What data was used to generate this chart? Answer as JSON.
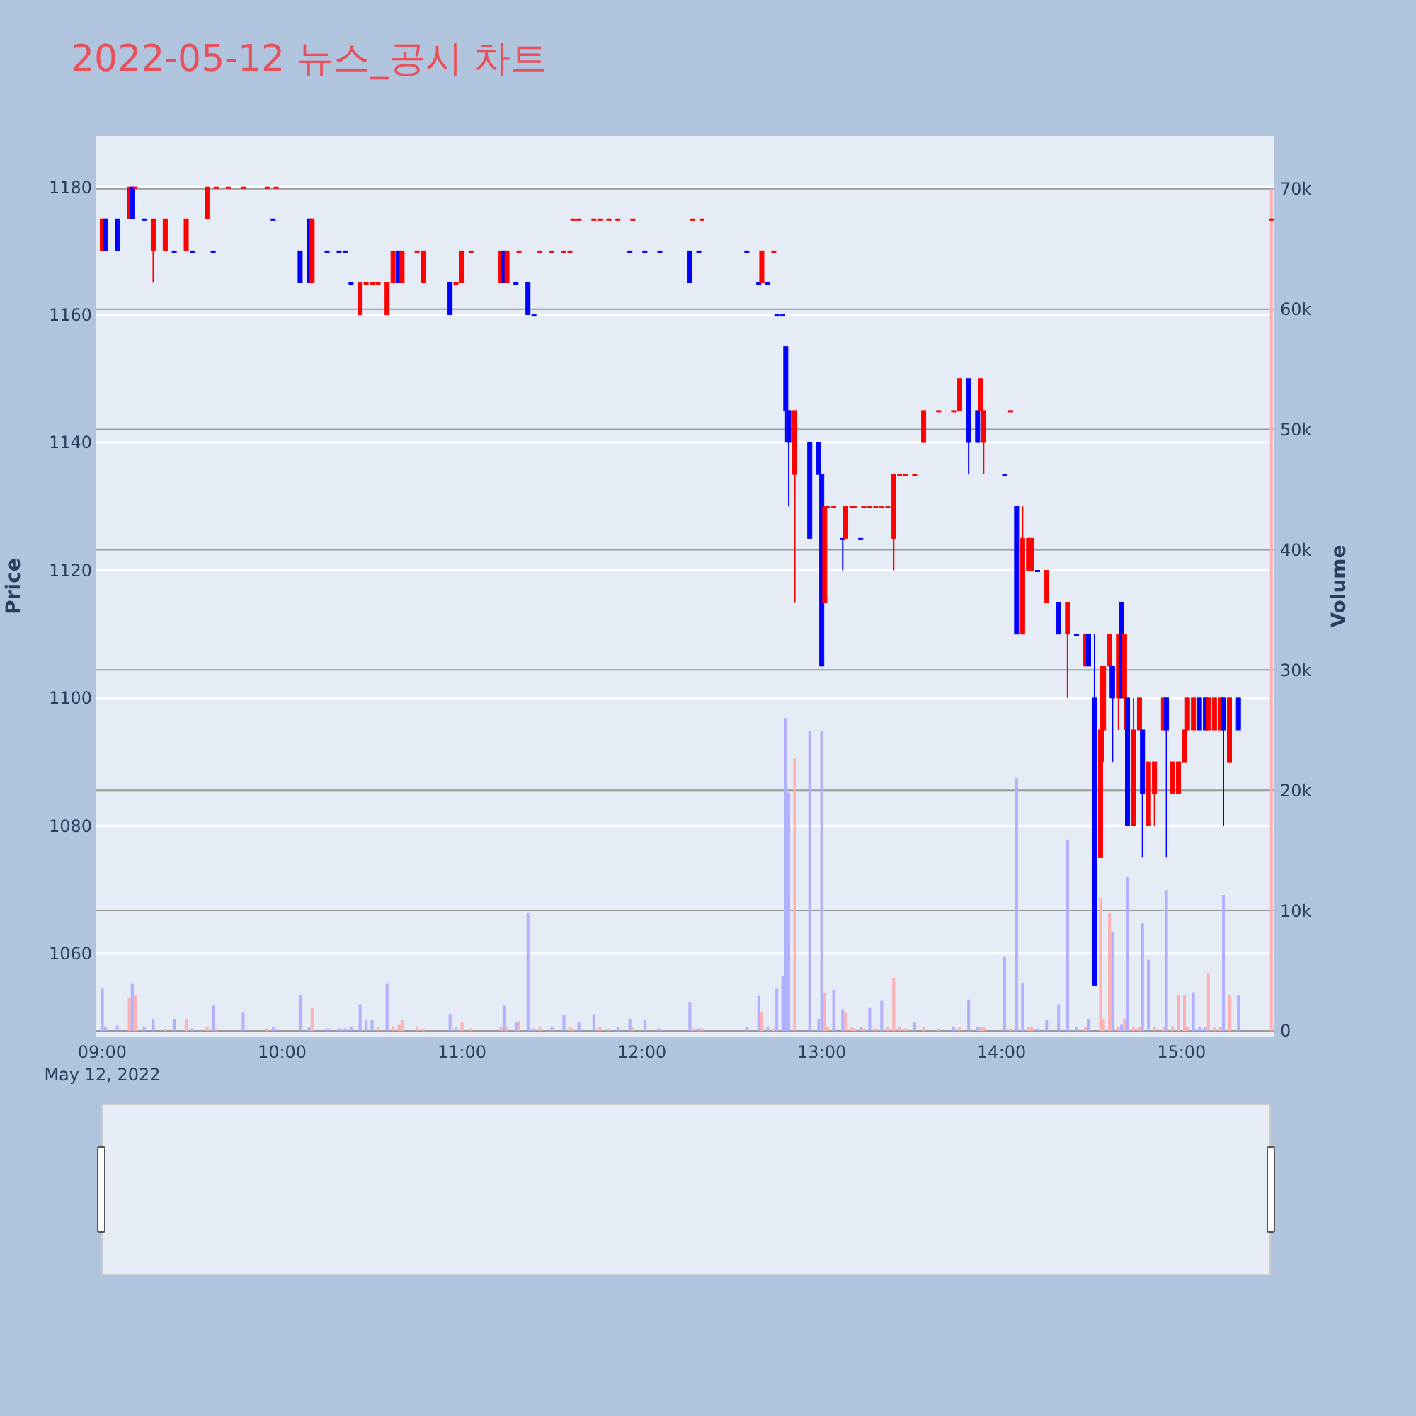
{
  "chart_data": {
    "type": "candlestick",
    "title": "2022-05-12 뉴스_공시 차트",
    "ylabel": "Price",
    "y2label": "Volume",
    "grid": "y",
    "xlim": [
      "2022-05-12T08:58",
      "2022-05-12T15:31"
    ],
    "xticks": [
      {
        "value": "2022-05-12T09:00",
        "label": "09:00\nMay 12, 2022"
      },
      {
        "value": "2022-05-12T10:00",
        "label": "10:00"
      },
      {
        "value": "2022-05-12T11:00",
        "label": "11:00"
      },
      {
        "value": "2022-05-12T12:00",
        "label": "12:00"
      },
      {
        "value": "2022-05-12T13:00",
        "label": "13:00"
      },
      {
        "value": "2022-05-12T14:00",
        "label": "14:00"
      },
      {
        "value": "2022-05-12T15:00",
        "label": "15:00"
      }
    ],
    "ylim": [
      1047,
      1188
    ],
    "yticks": [
      1060,
      1080,
      1100,
      1120,
      1140,
      1160,
      1180
    ],
    "y2lim": [
      -470,
      74400
    ],
    "y2ticks": [
      0,
      {
        "value": 10000,
        "label": "10k"
      },
      {
        "value": 20000,
        "label": "20k"
      },
      {
        "value": 30000,
        "label": "30k"
      },
      {
        "value": 40000,
        "label": "40k"
      },
      {
        "value": 50000,
        "label": "50k"
      },
      {
        "value": 60000,
        "label": "60k"
      },
      {
        "value": 70000,
        "label": "70k"
      }
    ],
    "x": [
      "2022-05-12T09:00",
      "2022-05-12T09:01",
      "2022-05-12T09:05",
      "2022-05-12T09:09",
      "2022-05-12T09:10",
      "2022-05-12T09:11",
      "2022-05-12T09:14",
      "2022-05-12T09:17",
      "2022-05-12T09:21",
      "2022-05-12T09:24",
      "2022-05-12T09:28",
      "2022-05-12T09:30",
      "2022-05-12T09:35",
      "2022-05-12T09:37",
      "2022-05-12T09:38",
      "2022-05-12T09:42",
      "2022-05-12T09:47",
      "2022-05-12T09:55",
      "2022-05-12T09:57",
      "2022-05-12T09:58",
      "2022-05-12T10:06",
      "2022-05-12T10:09",
      "2022-05-12T10:10",
      "2022-05-12T10:15",
      "2022-05-12T10:19",
      "2022-05-12T10:21",
      "2022-05-12T10:23",
      "2022-05-12T10:26",
      "2022-05-12T10:28",
      "2022-05-12T10:30",
      "2022-05-12T10:32",
      "2022-05-12T10:35",
      "2022-05-12T10:37",
      "2022-05-12T10:39",
      "2022-05-12T10:40",
      "2022-05-12T10:45",
      "2022-05-12T10:47",
      "2022-05-12T10:56",
      "2022-05-12T10:58",
      "2022-05-12T11:00",
      "2022-05-12T11:03",
      "2022-05-12T11:13",
      "2022-05-12T11:14",
      "2022-05-12T11:15",
      "2022-05-12T11:18",
      "2022-05-12T11:19",
      "2022-05-12T11:22",
      "2022-05-12T11:24",
      "2022-05-12T11:26",
      "2022-05-12T11:30",
      "2022-05-12T11:34",
      "2022-05-12T11:36",
      "2022-05-12T11:37",
      "2022-05-12T11:39",
      "2022-05-12T11:44",
      "2022-05-12T11:46",
      "2022-05-12T11:49",
      "2022-05-12T11:52",
      "2022-05-12T11:56",
      "2022-05-12T11:57",
      "2022-05-12T12:01",
      "2022-05-12T12:06",
      "2022-05-12T12:16",
      "2022-05-12T12:17",
      "2022-05-12T12:19",
      "2022-05-12T12:20",
      "2022-05-12T12:35",
      "2022-05-12T12:39",
      "2022-05-12T12:40",
      "2022-05-12T12:42",
      "2022-05-12T12:44",
      "2022-05-12T12:45",
      "2022-05-12T12:47",
      "2022-05-12T12:48",
      "2022-05-12T12:49",
      "2022-05-12T12:51",
      "2022-05-12T12:56",
      "2022-05-12T12:59",
      "2022-05-12T13:00",
      "2022-05-12T13:01",
      "2022-05-12T13:02",
      "2022-05-12T13:04",
      "2022-05-12T13:07",
      "2022-05-12T13:08",
      "2022-05-12T13:10",
      "2022-05-12T13:11",
      "2022-05-12T13:13",
      "2022-05-12T13:14",
      "2022-05-12T13:16",
      "2022-05-12T13:18",
      "2022-05-12T13:20",
      "2022-05-12T13:22",
      "2022-05-12T13:24",
      "2022-05-12T13:26",
      "2022-05-12T13:28",
      "2022-05-12T13:31",
      "2022-05-12T13:34",
      "2022-05-12T13:39",
      "2022-05-12T13:44",
      "2022-05-12T13:46",
      "2022-05-12T13:49",
      "2022-05-12T13:52",
      "2022-05-12T13:53",
      "2022-05-12T13:54",
      "2022-05-12T14:01",
      "2022-05-12T14:03",
      "2022-05-12T14:05",
      "2022-05-12T14:07",
      "2022-05-12T14:09",
      "2022-05-12T14:10",
      "2022-05-12T14:12",
      "2022-05-12T14:15",
      "2022-05-12T14:19",
      "2022-05-12T14:22",
      "2022-05-12T14:25",
      "2022-05-12T14:28",
      "2022-05-12T14:29",
      "2022-05-12T14:31",
      "2022-05-12T14:33",
      "2022-05-12T14:34",
      "2022-05-12T14:36",
      "2022-05-12T14:37",
      "2022-05-12T14:39",
      "2022-05-12T14:40",
      "2022-05-12T14:41",
      "2022-05-12T14:42",
      "2022-05-12T14:44",
      "2022-05-12T14:46",
      "2022-05-12T14:47",
      "2022-05-12T14:49",
      "2022-05-12T14:51",
      "2022-05-12T14:54",
      "2022-05-12T14:55",
      "2022-05-12T14:57",
      "2022-05-12T14:59",
      "2022-05-12T15:01",
      "2022-05-12T15:02",
      "2022-05-12T15:04",
      "2022-05-12T15:06",
      "2022-05-12T15:08",
      "2022-05-12T15:09",
      "2022-05-12T15:11",
      "2022-05-12T15:13",
      "2022-05-12T15:14",
      "2022-05-12T15:16",
      "2022-05-12T15:19",
      "2022-05-12T15:30"
    ],
    "ohlc": [
      [
        1170,
        1175,
        1170,
        1175
      ],
      [
        1175,
        1175,
        1170,
        1170
      ],
      [
        1175,
        1175,
        1170,
        1170
      ],
      [
        1175,
        1180,
        1175,
        1180
      ],
      [
        1180,
        1180,
        1175,
        1175
      ],
      [
        1180,
        1180,
        1180,
        1180
      ],
      [
        1175,
        1175,
        1175,
        1175
      ],
      [
        1170,
        1175,
        1165,
        1175
      ],
      [
        1170,
        1175,
        1170,
        1175
      ],
      [
        1170,
        1170,
        1170,
        1170
      ],
      [
        1170,
        1175,
        1170,
        1175
      ],
      [
        1170,
        1170,
        1170,
        1170
      ],
      [
        1175,
        1180,
        1175,
        1180
      ],
      [
        1170,
        1170,
        1170,
        1170
      ],
      [
        1180,
        1180,
        1180,
        1180
      ],
      [
        1180,
        1180,
        1180,
        1180
      ],
      [
        1180,
        1180,
        1180,
        1180
      ],
      [
        1180,
        1180,
        1180,
        1180
      ],
      [
        1175,
        1175,
        1175,
        1175
      ],
      [
        1180,
        1180,
        1180,
        1180
      ],
      [
        1170,
        1170,
        1165,
        1165
      ],
      [
        1175,
        1175,
        1165,
        1165
      ],
      [
        1165,
        1175,
        1165,
        1175
      ],
      [
        1170,
        1170,
        1170,
        1170
      ],
      [
        1170,
        1170,
        1170,
        1170
      ],
      [
        1170,
        1170,
        1170,
        1170
      ],
      [
        1165,
        1165,
        1165,
        1165
      ],
      [
        1160,
        1165,
        1160,
        1165
      ],
      [
        1165,
        1165,
        1165,
        1165
      ],
      [
        1165,
        1165,
        1165,
        1165
      ],
      [
        1165,
        1165,
        1165,
        1165
      ],
      [
        1160,
        1165,
        1160,
        1165
      ],
      [
        1165,
        1170,
        1165,
        1170
      ],
      [
        1170,
        1170,
        1165,
        1165
      ],
      [
        1165,
        1170,
        1165,
        1170
      ],
      [
        1170,
        1170,
        1170,
        1170
      ],
      [
        1165,
        1170,
        1165,
        1170
      ],
      [
        1165,
        1165,
        1160,
        1160
      ],
      [
        1165,
        1165,
        1165,
        1165
      ],
      [
        1165,
        1170,
        1165,
        1170
      ],
      [
        1170,
        1170,
        1170,
        1170
      ],
      [
        1165,
        1170,
        1165,
        1170
      ],
      [
        1170,
        1170,
        1165,
        1165
      ],
      [
        1165,
        1170,
        1165,
        1170
      ],
      [
        1165,
        1165,
        1165,
        1165
      ],
      [
        1170,
        1170,
        1170,
        1170
      ],
      [
        1165,
        1165,
        1160,
        1160
      ],
      [
        1160,
        1160,
        1160,
        1160
      ],
      [
        1170,
        1170,
        1170,
        1170
      ],
      [
        1170,
        1170,
        1170,
        1170
      ],
      [
        1170,
        1170,
        1170,
        1170
      ],
      [
        1170,
        1170,
        1170,
        1170
      ],
      [
        1175,
        1175,
        1175,
        1175
      ],
      [
        1175,
        1175,
        1175,
        1175
      ],
      [
        1175,
        1175,
        1175,
        1175
      ],
      [
        1175,
        1175,
        1175,
        1175
      ],
      [
        1175,
        1175,
        1175,
        1175
      ],
      [
        1175,
        1175,
        1175,
        1175
      ],
      [
        1170,
        1170,
        1170,
        1170
      ],
      [
        1175,
        1175,
        1175,
        1175
      ],
      [
        1170,
        1170,
        1170,
        1170
      ],
      [
        1170,
        1170,
        1170,
        1170
      ],
      [
        1170,
        1170,
        1165,
        1165
      ],
      [
        1175,
        1175,
        1175,
        1175
      ],
      [
        1170,
        1170,
        1170,
        1170
      ],
      [
        1175,
        1175,
        1175,
        1175
      ],
      [
        1170,
        1170,
        1170,
        1170
      ],
      [
        1165,
        1165,
        1165,
        1165
      ],
      [
        1165,
        1170,
        1165,
        1170
      ],
      [
        1165,
        1165,
        1165,
        1165
      ],
      [
        1170,
        1170,
        1170,
        1170
      ],
      [
        1160,
        1160,
        1160,
        1160
      ],
      [
        1160,
        1160,
        1160,
        1160
      ],
      [
        1155,
        1155,
        1140,
        1145
      ],
      [
        1145,
        1145,
        1130,
        1140
      ],
      [
        1135,
        1145,
        1115,
        1145
      ],
      [
        1140,
        1140,
        1125,
        1125
      ],
      [
        1140,
        1140,
        1135,
        1135
      ],
      [
        1135,
        1135,
        1105,
        1105
      ],
      [
        1115,
        1130,
        1115,
        1130
      ],
      [
        1130,
        1130,
        1130,
        1130
      ],
      [
        1130,
        1130,
        1130,
        1130
      ],
      [
        1125,
        1125,
        1120,
        1125
      ],
      [
        1125,
        1130,
        1125,
        1130
      ],
      [
        1130,
        1130,
        1130,
        1130
      ],
      [
        1130,
        1130,
        1130,
        1130
      ],
      [
        1125,
        1125,
        1125,
        1125
      ],
      [
        1130,
        1130,
        1130,
        1130
      ],
      [
        1130,
        1130,
        1130,
        1130
      ],
      [
        1130,
        1130,
        1130,
        1130
      ],
      [
        1130,
        1130,
        1130,
        1130
      ],
      [
        1130,
        1130,
        1130,
        1130
      ],
      [
        1125,
        1135,
        1120,
        1135
      ],
      [
        1135,
        1135,
        1135,
        1135
      ],
      [
        1135,
        1135,
        1135,
        1135
      ],
      [
        1135,
        1135,
        1135,
        1135
      ],
      [
        1140,
        1145,
        1140,
        1145
      ],
      [
        1145,
        1145,
        1145,
        1145
      ],
      [
        1145,
        1145,
        1145,
        1145
      ],
      [
        1145,
        1150,
        1145,
        1150
      ],
      [
        1150,
        1150,
        1135,
        1140
      ],
      [
        1145,
        1145,
        1140,
        1140
      ],
      [
        1145,
        1150,
        1145,
        1150
      ],
      [
        1140,
        1145,
        1135,
        1145
      ],
      [
        1135,
        1135,
        1135,
        1135
      ],
      [
        1145,
        1145,
        1145,
        1145
      ],
      [
        1130,
        1130,
        1110,
        1110
      ],
      [
        1110,
        1130,
        1110,
        1125
      ],
      [
        1120,
        1125,
        1120,
        1125
      ],
      [
        1120,
        1125,
        1120,
        1125
      ],
      [
        1120,
        1120,
        1120,
        1120
      ],
      [
        1115,
        1120,
        1115,
        1120
      ],
      [
        1115,
        1115,
        1110,
        1110
      ],
      [
        1110,
        1115,
        1100,
        1115
      ],
      [
        1110,
        1110,
        1110,
        1110
      ],
      [
        1105,
        1110,
        1105,
        1110
      ],
      [
        1110,
        1110,
        1105,
        1105
      ],
      [
        1100,
        1110,
        1055,
        1055
      ],
      [
        1075,
        1105,
        1075,
        1095
      ],
      [
        1095,
        1105,
        1090,
        1105
      ],
      [
        1105,
        1110,
        1100,
        1110
      ],
      [
        1105,
        1105,
        1090,
        1100
      ],
      [
        1100,
        1110,
        1095,
        1110
      ],
      [
        1115,
        1115,
        1100,
        1100
      ],
      [
        1100,
        1110,
        1095,
        1110
      ],
      [
        1100,
        1100,
        1080,
        1080
      ],
      [
        1080,
        1100,
        1080,
        1095
      ],
      [
        1095,
        1100,
        1095,
        1100
      ],
      [
        1095,
        1095,
        1075,
        1085
      ],
      [
        1080,
        1090,
        1080,
        1090
      ],
      [
        1085,
        1090,
        1080,
        1090
      ],
      [
        1095,
        1100,
        1095,
        1100
      ],
      [
        1100,
        1100,
        1075,
        1095
      ],
      [
        1085,
        1090,
        1085,
        1090
      ],
      [
        1085,
        1090,
        1085,
        1090
      ],
      [
        1090,
        1095,
        1090,
        1095
      ],
      [
        1095,
        1100,
        1095,
        1100
      ],
      [
        1095,
        1100,
        1095,
        1100
      ],
      [
        1100,
        1100,
        1095,
        1095
      ],
      [
        1100,
        1100,
        1095,
        1095
      ],
      [
        1095,
        1100,
        1095,
        1100
      ],
      [
        1095,
        1100,
        1095,
        1100
      ],
      [
        1095,
        1100,
        1095,
        1100
      ],
      [
        1100,
        1100,
        1080,
        1095
      ],
      [
        1090,
        1100,
        1090,
        1100
      ],
      [
        1100,
        1100,
        1095,
        1095
      ],
      [
        1175,
        1175,
        1175,
        1175
      ]
    ],
    "colors": [
      "#ff0000",
      "#0000ff",
      "#0000ff",
      "#ff0000",
      "#0000ff",
      "#ff0000",
      "#0000ff",
      "#ff0000",
      "#ff0000",
      "#0000ff",
      "#ff0000",
      "#0000ff",
      "#ff0000",
      "#0000ff",
      "#ff0000",
      "#ff0000",
      "#ff0000",
      "#ff0000",
      "#0000ff",
      "#ff0000",
      "#0000ff",
      "#0000ff",
      "#ff0000",
      "#0000ff",
      "#0000ff",
      "#0000ff",
      "#0000ff",
      "#ff0000",
      "#ff0000",
      "#ff0000",
      "#ff0000",
      "#ff0000",
      "#ff0000",
      "#0000ff",
      "#ff0000",
      "#ff0000",
      "#ff0000",
      "#0000ff",
      "#ff0000",
      "#ff0000",
      "#ff0000",
      "#ff0000",
      "#0000ff",
      "#ff0000",
      "#0000ff",
      "#ff0000",
      "#0000ff",
      "#0000ff",
      "#ff0000",
      "#ff0000",
      "#ff0000",
      "#ff0000",
      "#ff0000",
      "#ff0000",
      "#ff0000",
      "#ff0000",
      "#ff0000",
      "#ff0000",
      "#0000ff",
      "#ff0000",
      "#0000ff",
      "#0000ff",
      "#0000ff",
      "#ff0000",
      "#0000ff",
      "#ff0000",
      "#0000ff",
      "#0000ff",
      "#ff0000",
      "#0000ff",
      "#ff0000",
      "#0000ff",
      "#0000ff",
      "#0000ff",
      "#0000ff",
      "#ff0000",
      "#0000ff",
      "#0000ff",
      "#0000ff",
      "#ff0000",
      "#ff0000",
      "#ff0000",
      "#0000ff",
      "#ff0000",
      "#ff0000",
      "#ff0000",
      "#0000ff",
      "#ff0000",
      "#ff0000",
      "#ff0000",
      "#ff0000",
      "#ff0000",
      "#ff0000",
      "#ff0000",
      "#ff0000",
      "#ff0000",
      "#ff0000",
      "#ff0000",
      "#ff0000",
      "#ff0000",
      "#0000ff",
      "#0000ff",
      "#ff0000",
      "#ff0000",
      "#0000ff",
      "#ff0000",
      "#0000ff",
      "#ff0000",
      "#ff0000",
      "#ff0000",
      "#0000ff",
      "#ff0000",
      "#0000ff",
      "#ff0000",
      "#0000ff",
      "#ff0000",
      "#0000ff",
      "#0000ff",
      "#ff0000",
      "#ff0000",
      "#ff0000",
      "#0000ff",
      "#ff0000",
      "#0000ff",
      "#ff0000",
      "#0000ff",
      "#ff0000",
      "#ff0000",
      "#0000ff",
      "#ff0000",
      "#ff0000",
      "#ff0000",
      "#0000ff",
      "#ff0000",
      "#ff0000",
      "#ff0000",
      "#ff0000",
      "#ff0000",
      "#0000ff",
      "#0000ff",
      "#ff0000",
      "#ff0000",
      "#ff0000",
      "#0000ff",
      "#ff0000",
      "#0000ff",
      "#ff0000"
    ],
    "series": [
      {
        "type": "bar",
        "axis": "y2",
        "values": [
          3500,
          300,
          400,
          2800,
          3900,
          3000,
          300,
          1000,
          200,
          1000,
          1000,
          200,
          300,
          2100,
          200,
          null,
          1500,
          200,
          300,
          null,
          3000,
          300,
          1900,
          200,
          200,
          200,
          300,
          2200,
          900,
          900,
          300,
          3900,
          400,
          500,
          900,
          300,
          200,
          1400,
          300,
          700,
          200,
          300,
          2100,
          300,
          700,
          800,
          9800,
          200,
          300,
          300,
          1300,
          300,
          200,
          700,
          1400,
          300,
          200,
          300,
          1000,
          300,
          900,
          200,
          2400,
          200,
          200,
          200,
          300,
          2900,
          1600,
          300,
          200,
          3500,
          4600,
          26000,
          19800,
          22700,
          24900,
          1000,
          24900,
          3200,
          300,
          3400,
          1800,
          1500,
          300,
          200,
          300,
          200,
          1900,
          200,
          2500,
          300,
          4400,
          300,
          200,
          700,
          300,
          200,
          300,
          300,
          2600,
          300,
          300,
          300,
          6200,
          200,
          21000,
          4000,
          300,
          300,
          200,
          900,
          2200,
          15900,
          300,
          300,
          1000,
          null,
          11000,
          1000,
          9800,
          8200,
          300,
          500,
          1000,
          12800,
          300,
          300,
          9000,
          5900,
          300,
          300,
          11700,
          300,
          3000,
          3000,
          300,
          3200,
          300,
          300,
          4800,
          300,
          300,
          11300,
          3000,
          3000,
          70000
        ],
        "colors": [
          "#b0b0ff",
          "#b0b0ff",
          "#b0b0ff",
          "#ffb0b0",
          "#b0b0ff",
          "#ffb0b0",
          "#b0b0ff",
          "#b0b0ff",
          "#ffb0b0",
          "#b0b0ff",
          "#ffb0b0",
          "#b0b0ff",
          "#ffb0b0",
          "#b0b0ff",
          "#ffb0b0",
          "#ffb0b0",
          "#b0b0ff",
          "#ffb0b0",
          "#b0b0ff",
          "#ffb0b0",
          "#b0b0ff",
          "#b0b0ff",
          "#ffb0b0",
          "#b0b0ff",
          "#b0b0ff",
          "#b0b0ff",
          "#b0b0ff",
          "#b0b0ff",
          "#b0b0ff",
          "#b0b0ff",
          "#ffb0b0",
          "#b0b0ff",
          "#ffb0b0",
          "#ffb0b0",
          "#ffb0b0",
          "#ffb0b0",
          "#ffb0b0",
          "#b0b0ff",
          "#b0b0ff",
          "#ffb0b0",
          "#ffb0b0",
          "#ffb0b0",
          "#b0b0ff",
          "#ffb0b0",
          "#b0b0ff",
          "#ffb0b0",
          "#b0b0ff",
          "#b0b0ff",
          "#ffb0b0",
          "#b0b0ff",
          "#b0b0ff",
          "#ffb0b0",
          "#ffb0b0",
          "#b0b0ff",
          "#b0b0ff",
          "#ffb0b0",
          "#ffb0b0",
          "#b0b0ff",
          "#b0b0ff",
          "#ffb0b0",
          "#b0b0ff",
          "#b0b0ff",
          "#b0b0ff",
          "#ffb0b0",
          "#b0b0ff",
          "#ffb0b0",
          "#b0b0ff",
          "#b0b0ff",
          "#ffb0b0",
          "#b0b0ff",
          "#ffb0b0",
          "#b0b0ff",
          "#b0b0ff",
          "#b0b0ff",
          "#b0b0ff",
          "#ffb0b0",
          "#b0b0ff",
          "#b0b0ff",
          "#b0b0ff",
          "#ffb0b0",
          "#ffb0b0",
          "#b0b0ff",
          "#b0b0ff",
          "#ffb0b0",
          "#ffb0b0",
          "#ffb0b0",
          "#b0b0ff",
          "#ffb0b0",
          "#b0b0ff",
          "#ffb0b0",
          "#b0b0ff",
          "#ffb0b0",
          "#ffb0b0",
          "#ffb0b0",
          "#ffb0b0",
          "#b0b0ff",
          "#ffb0b0",
          "#ffb0b0",
          "#b0b0ff",
          "#ffb0b0",
          "#b0b0ff",
          "#b0b0ff",
          "#ffb0b0",
          "#ffb0b0",
          "#b0b0ff",
          "#ffb0b0",
          "#b0b0ff",
          "#b0b0ff",
          "#ffb0b0",
          "#ffb0b0",
          "#b0b0ff",
          "#b0b0ff",
          "#b0b0ff",
          "#b0b0ff",
          "#b0b0ff",
          "#ffb0b0",
          "#b0b0ff",
          "#b0b0ff",
          "#ffb0b0",
          "#ffb0b0",
          "#ffb0b0",
          "#b0b0ff",
          "#ffb0b0",
          "#b0b0ff",
          "#ffb0b0",
          "#b0b0ff",
          "#ffb0b0",
          "#ffb0b0",
          "#b0b0ff",
          "#b0b0ff",
          "#ffb0b0",
          "#ffb0b0",
          "#b0b0ff",
          "#ffb0b0",
          "#ffb0b0",
          "#ffb0b0",
          "#ffb0b0",
          "#b0b0ff",
          "#b0b0ff",
          "#b0b0ff",
          "#ffb0b0",
          "#ffb0b0",
          "#ffb0b0",
          "#b0b0ff",
          "#ffb0b0",
          "#b0b0ff",
          "#ffb0b0"
        ]
      }
    ]
  }
}
